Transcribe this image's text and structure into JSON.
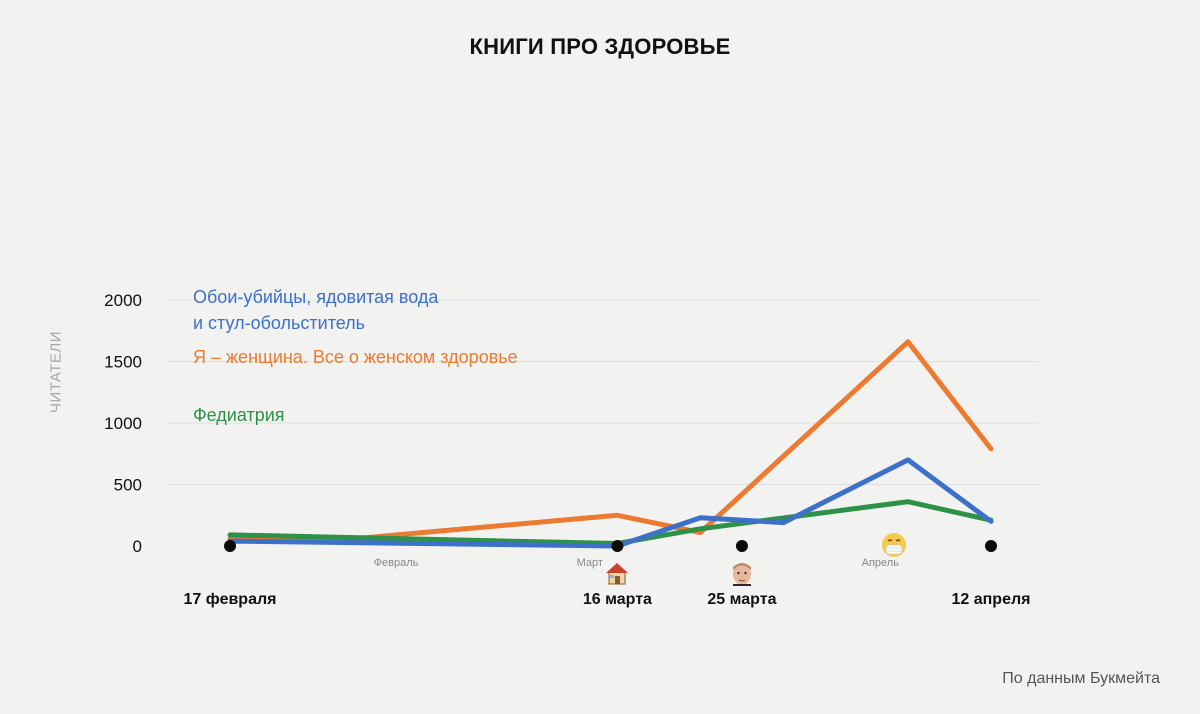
{
  "title": "КНИГИ ПРО ЗДОРОВЬЕ",
  "source": "По данным Букмейта",
  "colors": {
    "background": "#f2f2f0",
    "grid": "#dedede",
    "blue": "#3d70c9",
    "orange": "#ec7a30",
    "green": "#2e9148"
  },
  "chart_data": {
    "type": "line",
    "ylabel": "ЧИТАТЕЛИ",
    "ylim": [
      0,
      2000
    ],
    "yticks": [
      0,
      500,
      1000,
      1500,
      2000
    ],
    "grid": true,
    "legend_placement": "top-left",
    "x_range": [
      "2020-02-17",
      "2020-04-12"
    ],
    "month_ticks": [
      {
        "date": "2020-02-29",
        "label": "Февраль"
      },
      {
        "date": "2020-03-14",
        "label": "Март"
      },
      {
        "date": "2020-04-04",
        "label": "Апрель"
      }
    ],
    "events": [
      {
        "date": "2020-02-17",
        "label": "17 февраля",
        "icon": ""
      },
      {
        "date": "2020-03-16",
        "label": "16 марта",
        "icon": "house-icon"
      },
      {
        "date": "2020-03-25",
        "label": "25 марта",
        "icon": "person-face-icon"
      },
      {
        "date": "2020-04-05",
        "label": "",
        "icon": "face-with-mask-icon"
      },
      {
        "date": "2020-04-12",
        "label": "12 апреля",
        "icon": ""
      }
    ],
    "series": [
      {
        "name": "Я – женщина. Все о женском здоровье",
        "color": "#ec7a30",
        "points": [
          {
            "x": "2020-02-17",
            "y": 60
          },
          {
            "x": "2020-02-24",
            "y": 40
          },
          {
            "x": "2020-03-16",
            "y": 250
          },
          {
            "x": "2020-03-22",
            "y": 110
          },
          {
            "x": "2020-04-06",
            "y": 1660
          },
          {
            "x": "2020-04-12",
            "y": 790
          }
        ]
      },
      {
        "name": "Федиатрия",
        "color": "#2e9148",
        "points": [
          {
            "x": "2020-02-17",
            "y": 90
          },
          {
            "x": "2020-03-16",
            "y": 20
          },
          {
            "x": "2020-03-22",
            "y": 140
          },
          {
            "x": "2020-04-06",
            "y": 360
          },
          {
            "x": "2020-04-12",
            "y": 210
          }
        ]
      },
      {
        "name": "Обои-убийцы, ядовитая вода\nи стул-обольститель",
        "color": "#3d70c9",
        "points": [
          {
            "x": "2020-02-17",
            "y": 40
          },
          {
            "x": "2020-03-16",
            "y": 0
          },
          {
            "x": "2020-03-22",
            "y": 230
          },
          {
            "x": "2020-03-28",
            "y": 190
          },
          {
            "x": "2020-04-06",
            "y": 700
          },
          {
            "x": "2020-04-12",
            "y": 200
          }
        ]
      }
    ]
  }
}
